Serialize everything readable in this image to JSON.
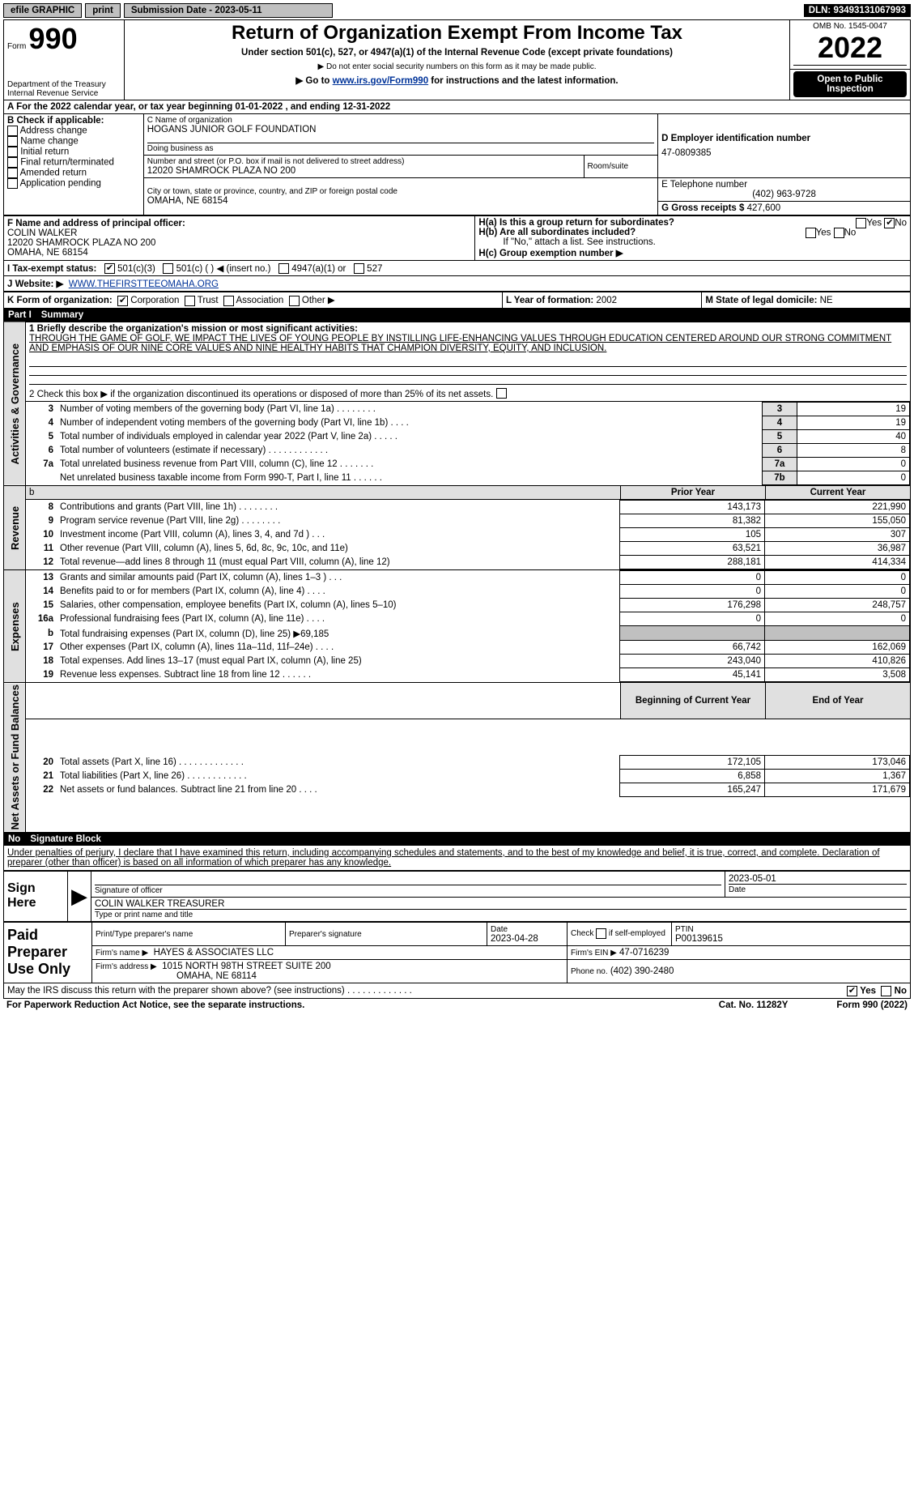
{
  "topbar": {
    "efile": "efile GRAPHIC",
    "print": "print",
    "sub_date_label": "Submission Date - 2023-05-11",
    "dln": "DLN: 93493131067993"
  },
  "header": {
    "form_label": "Form",
    "form_no": "990",
    "dept": "Department of the Treasury",
    "irs": "Internal Revenue Service",
    "title": "Return of Organization Exempt From Income Tax",
    "subtitle": "Under section 501(c), 527, or 4947(a)(1) of the Internal Revenue Code (except private foundations)",
    "ssn": "▶ Do not enter social security numbers on this form as it may be made public.",
    "goto": "▶ Go to www.irs.gov/Form990 for instructions and the latest information.",
    "goto_pre": "▶ Go to ",
    "goto_link": "www.irs.gov/Form990",
    "goto_post": " for instructions and the latest information.",
    "omb": "OMB No. 1545-0047",
    "year": "2022",
    "open": "Open to Public Inspection"
  },
  "line_a": "For the 2022 calendar year, or tax year beginning 01-01-2022    , and ending 12-31-2022",
  "b": {
    "label": "B Check if applicable:",
    "items": [
      "Address change",
      "Name change",
      "Initial return",
      "Final return/terminated",
      "Amended return",
      "Application pending"
    ]
  },
  "c": {
    "name_label": "C Name of organization",
    "name": "HOGANS JUNIOR GOLF FOUNDATION",
    "dba_label": "Doing business as",
    "street_label": "Number and street (or P.O. box if mail is not delivered to street address)",
    "room_label": "Room/suite",
    "street": "12020 SHAMROCK PLAZA NO 200",
    "city_label": "City or town, state or province, country, and ZIP or foreign postal code",
    "city": "OMAHA, NE  68154"
  },
  "d": {
    "label": "D Employer identification number",
    "val": "47-0809385"
  },
  "e": {
    "label": "E Telephone number",
    "val": "(402) 963-9728"
  },
  "g": {
    "label": "G Gross receipts $",
    "val": "427,600"
  },
  "f": {
    "label": "F Name and address of principal officer:",
    "name": "COLIN WALKER",
    "addr1": "12020 SHAMROCK PLAZA NO 200",
    "addr2": "OMAHA, NE  68154"
  },
  "h": {
    "a": "H(a)  Is this a group return for subordinates?",
    "b": "H(b)  Are all subordinates included?",
    "note": "If \"No,\" attach a list. See instructions.",
    "c": "H(c)  Group exemption number ▶",
    "yes": "Yes",
    "no": "No"
  },
  "i": {
    "label": "I   Tax-exempt status:",
    "o1": "501(c)(3)",
    "o2": "501(c) (    ) ◀ (insert no.)",
    "o3": "4947(a)(1) or",
    "o4": "527"
  },
  "j": {
    "label": "J   Website: ▶",
    "val": "WWW.THEFIRSTTEEOMAHA.ORG"
  },
  "k": {
    "label": "K Form of organization:",
    "o1": "Corporation",
    "o2": "Trust",
    "o3": "Association",
    "o4": "Other ▶"
  },
  "l": {
    "label": "L Year of formation:",
    "val": "2002"
  },
  "m": {
    "label": "M State of legal domicile:",
    "val": "NE"
  },
  "part1": {
    "no": "Part I",
    "title": "Summary",
    "q1": "1  Briefly describe the organization's mission or most significant activities:",
    "mission": "THROUGH THE GAME OF GOLF, WE IMPACT THE LIVES OF YOUNG PEOPLE BY INSTILLING LIFE-ENHANCING VALUES THROUGH EDUCATION CENTERED AROUND OUR STRONG COMMITMENT AND EMPHASIS OF OUR NINE CORE VALUES AND NINE HEALTHY HABITS THAT CHAMPION DIVERSITY, EQUITY, AND INCLUSION.",
    "q2": "2  Check this box ▶      if the organization discontinued its operations or disposed of more than 25% of its net assets.",
    "rows_ag": [
      {
        "n": "3",
        "t": "Number of voting members of the governing body (Part VI, line 1a)   .    .    .    .    .    .    .    .",
        "c": "3",
        "v": "19"
      },
      {
        "n": "4",
        "t": "Number of independent voting members of the governing body (Part VI, line 1b)   .    .    .    .",
        "c": "4",
        "v": "19"
      },
      {
        "n": "5",
        "t": "Total number of individuals employed in calendar year 2022 (Part V, line 2a)   .    .    .    .    .",
        "c": "5",
        "v": "40"
      },
      {
        "n": "6",
        "t": "Total number of volunteers (estimate if necessary)   .    .    .    .    .    .    .    .    .    .    .    .",
        "c": "6",
        "v": "8"
      },
      {
        "n": "7a",
        "t": "Total unrelated business revenue from Part VIII, column (C), line 12   .    .    .    .    .    .    .",
        "c": "7a",
        "v": "0"
      },
      {
        "n": "",
        "t": "Net unrelated business taxable income from Form 990-T, Part I, line 11   .    .    .    .    .    .",
        "c": "7b",
        "v": "0"
      }
    ],
    "prior": "Prior Year",
    "current": "Current Year",
    "rows_rev": [
      {
        "n": "8",
        "t": "Contributions and grants (Part VIII, line 1h)   .    .    .    .    .    .    .    .",
        "p": "143,173",
        "c": "221,990"
      },
      {
        "n": "9",
        "t": "Program service revenue (Part VIII, line 2g)   .    .    .    .    .    .    .    .",
        "p": "81,382",
        "c": "155,050"
      },
      {
        "n": "10",
        "t": "Investment income (Part VIII, column (A), lines 3, 4, and 7d )   .    .    .",
        "p": "105",
        "c": "307"
      },
      {
        "n": "11",
        "t": "Other revenue (Part VIII, column (A), lines 5, 6d, 8c, 9c, 10c, and 11e)",
        "p": "63,521",
        "c": "36,987"
      },
      {
        "n": "12",
        "t": "Total revenue—add lines 8 through 11 (must equal Part VIII, column (A), line 12)",
        "p": "288,181",
        "c": "414,334"
      }
    ],
    "rows_exp": [
      {
        "n": "13",
        "t": "Grants and similar amounts paid (Part IX, column (A), lines 1–3 )   .    .    .",
        "p": "0",
        "c": "0"
      },
      {
        "n": "14",
        "t": "Benefits paid to or for members (Part IX, column (A), line 4)   .    .    .    .",
        "p": "0",
        "c": "0"
      },
      {
        "n": "15",
        "t": "Salaries, other compensation, employee benefits (Part IX, column (A), lines 5–10)",
        "p": "176,298",
        "c": "248,757"
      },
      {
        "n": "16a",
        "t": "Professional fundraising fees (Part IX, column (A), line 11e)   .    .    .    .",
        "p": "0",
        "c": "0"
      },
      {
        "n": "b",
        "t": "Total fundraising expenses (Part IX, column (D), line 25) ▶69,185",
        "p": "",
        "c": "",
        "grey": true
      },
      {
        "n": "17",
        "t": "Other expenses (Part IX, column (A), lines 11a–11d, 11f–24e)   .    .    .    .",
        "p": "66,742",
        "c": "162,069"
      },
      {
        "n": "18",
        "t": "Total expenses. Add lines 13–17 (must equal Part IX, column (A), line 25)",
        "p": "243,040",
        "c": "410,826"
      },
      {
        "n": "19",
        "t": "Revenue less expenses. Subtract line 18 from line 12   .    .    .    .    .    .",
        "p": "45,141",
        "c": "3,508"
      }
    ],
    "boy": "Beginning of Current Year",
    "eoy": "End of Year",
    "rows_na": [
      {
        "n": "20",
        "t": "Total assets (Part X, line 16)   .    .    .    .    .    .    .    .    .    .    .    .    .",
        "p": "172,105",
        "c": "173,046"
      },
      {
        "n": "21",
        "t": "Total liabilities (Part X, line 26)   .    .    .    .    .    .    .    .    .    .    .    .",
        "p": "6,858",
        "c": "1,367"
      },
      {
        "n": "22",
        "t": "Net assets or fund balances. Subtract line 21 from line 20   .    .    .    .",
        "p": "165,247",
        "c": "171,679"
      }
    ],
    "side_ag": "Activities & Governance",
    "side_rev": "Revenue",
    "side_exp": "Expenses",
    "side_na": "Net Assets or Fund Balances",
    "b_label": "b"
  },
  "part2": {
    "no": "No",
    "title": "Signature Block",
    "penalty": "Under penalties of perjury, I declare that I have examined this return, including accompanying schedules and statements, and to the best of my knowledge and belief, it is true, correct, and complete. Declaration of preparer (other than officer) is based on all information of which preparer has any knowledge.",
    "sign_here": "Sign Here",
    "sig_officer": "Signature of officer",
    "sig_date": "Date",
    "sig_date_val": "2023-05-01",
    "officer_name": "COLIN WALKER  TREASURER",
    "type_name": "Type or print name and title",
    "paid": "Paid Preparer Use Only",
    "pt_name_l": "Print/Type preparer's name",
    "psig_l": "Preparer's signature",
    "date_l": "Date",
    "date_v": "2023-04-28",
    "check_l": "Check        if self-employed",
    "ptin_l": "PTIN",
    "ptin_v": "P00139615",
    "firm_name_l": "Firm's name    ▶",
    "firm_name": "HAYES & ASSOCIATES LLC",
    "firm_ein_l": "Firm's EIN ▶",
    "firm_ein": "47-0716239",
    "firm_addr_l": "Firm's address ▶",
    "firm_addr1": "1015 NORTH 98TH STREET SUITE 200",
    "firm_addr2": "OMAHA, NE  68114",
    "phone_l": "Phone no.",
    "phone": "(402) 390-2480",
    "may_irs": "May the IRS discuss this return with the preparer shown above? (see instructions)   .    .    .    .    .    .    .    .    .    .    .    .    .",
    "yes": "Yes"
  },
  "footer": {
    "pra": "For Paperwork Reduction Act Notice, see the separate instructions.",
    "cat": "Cat. No. 11282Y",
    "form": "Form 990 (2022)"
  }
}
